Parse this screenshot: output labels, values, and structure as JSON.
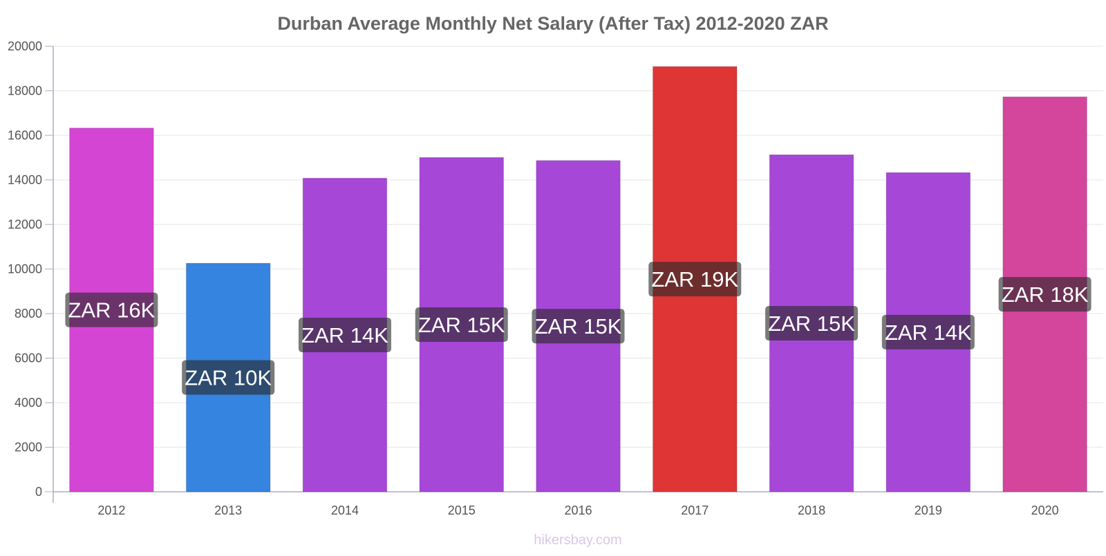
{
  "chart_data": {
    "type": "bar",
    "title": "Durban Average Monthly Net Salary (After Tax) 2012-2020 ZAR",
    "xlabel": "",
    "ylabel": "",
    "ylim": [
      0,
      20000
    ],
    "yticks": [
      0,
      2000,
      4000,
      6000,
      8000,
      10000,
      12000,
      14000,
      16000,
      18000,
      20000
    ],
    "categories": [
      "2012",
      "2013",
      "2014",
      "2015",
      "2016",
      "2017",
      "2018",
      "2019",
      "2020"
    ],
    "values": [
      16330,
      10260,
      14080,
      15010,
      14870,
      19090,
      15130,
      14330,
      17730
    ],
    "data_labels": [
      "ZAR 16K",
      "ZAR 10K",
      "ZAR 14K",
      "ZAR 15K",
      "ZAR 15K",
      "ZAR 19K",
      "ZAR 15K",
      "ZAR 14K",
      "ZAR 18K"
    ],
    "colors": [
      "#d545d4",
      "#3584e0",
      "#a647d8",
      "#a647d8",
      "#a647d8",
      "#e03535",
      "#a647d8",
      "#a647d8",
      "#d4459c"
    ],
    "label_bg_colors": [
      "#6b236a",
      "#1b4270",
      "#53246c",
      "#53246c",
      "#53246c",
      "#701b1b",
      "#53246c",
      "#53246c",
      "#6a234e"
    ],
    "grid": true,
    "legend": "none"
  },
  "watermark": "hikersbay.com"
}
